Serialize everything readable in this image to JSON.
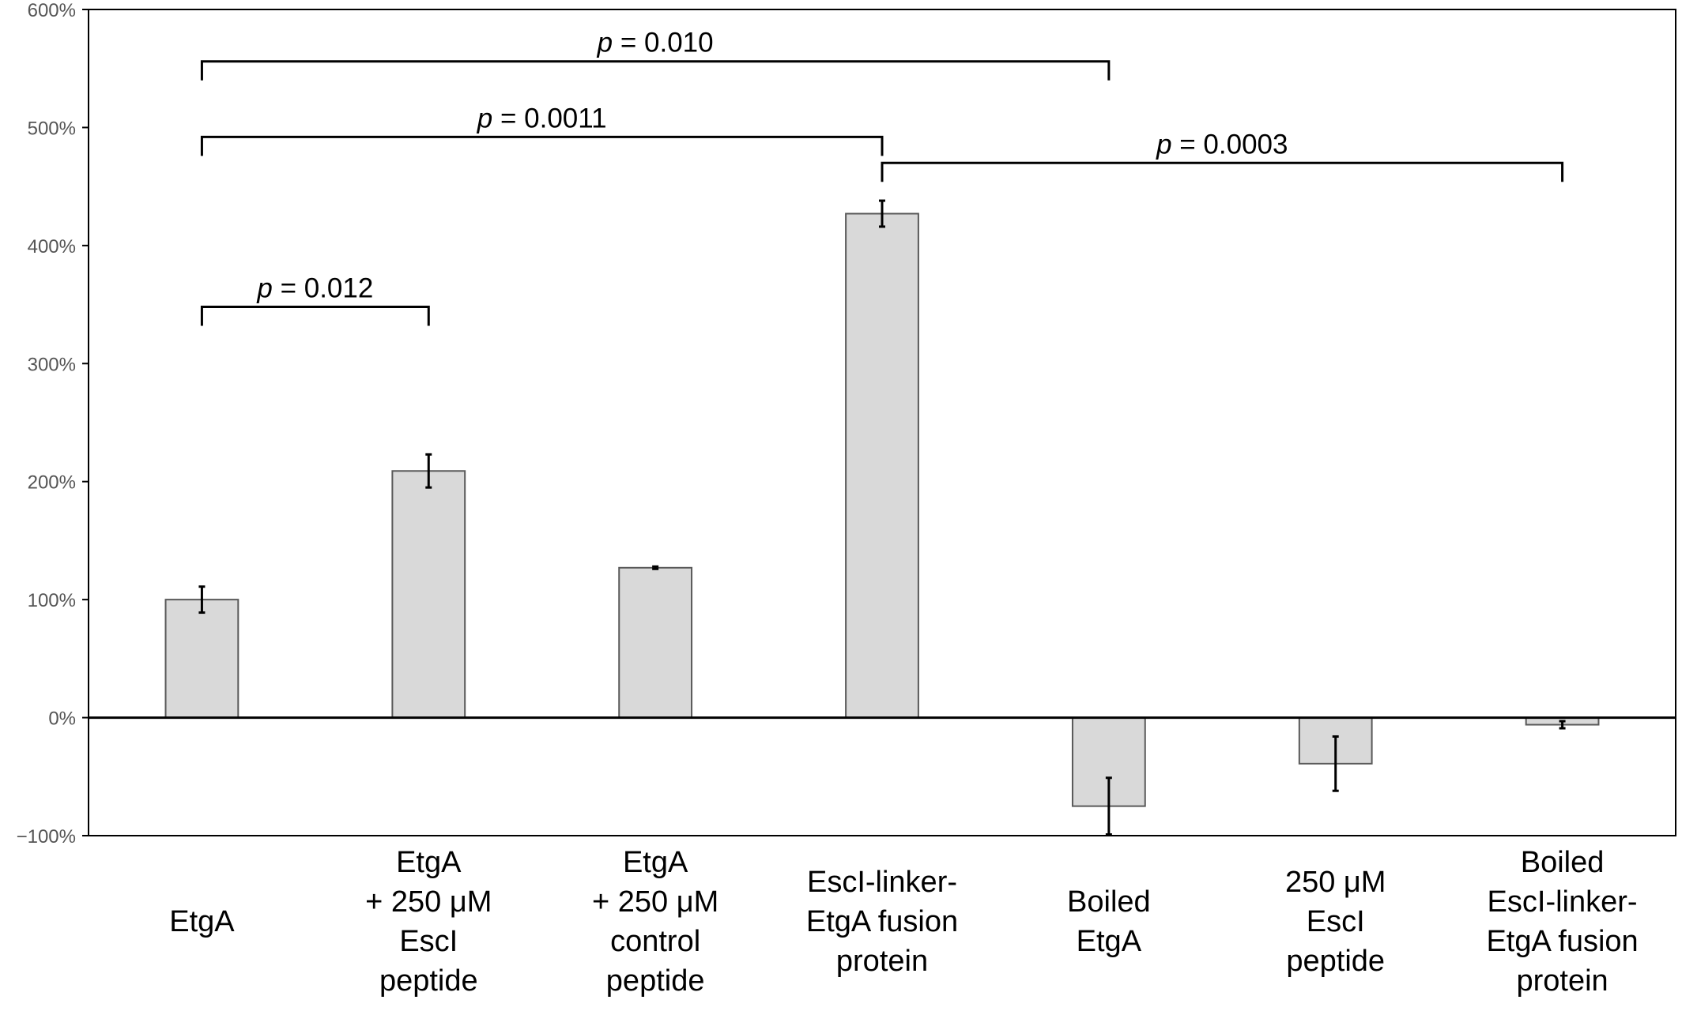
{
  "chart_data": {
    "type": "bar",
    "title": "",
    "xlabel": "",
    "ylabel": "",
    "ylim": [
      -100,
      600
    ],
    "yticks": [
      -100,
      0,
      100,
      200,
      300,
      400,
      500,
      600
    ],
    "ytick_labels": [
      "−100%",
      "0%",
      "100%",
      "200%",
      "300%",
      "400%",
      "500%",
      "600%"
    ],
    "categories": [
      [
        "EtgA"
      ],
      [
        "EtgA",
        "+ 250 μM",
        "EscI",
        "peptide"
      ],
      [
        "EtgA",
        "+ 250 μM",
        "control",
        "peptide"
      ],
      [
        "EscI-linker-",
        "EtgA fusion",
        "protein"
      ],
      [
        "Boiled",
        "EtgA"
      ],
      [
        "250 μM",
        "EscI",
        "peptide"
      ],
      [
        "Boiled",
        "EscI-linker-",
        "EtgA fusion",
        "protein"
      ]
    ],
    "values": [
      100,
      209,
      127,
      427,
      -75,
      -39,
      -6
    ],
    "errors": [
      11,
      14,
      1,
      11,
      24,
      23,
      3
    ],
    "grid": false,
    "bar_color": "#d9d9d9",
    "bar_edge_color": "#595959",
    "annotations": [
      {
        "from": 0,
        "to": 4,
        "y": 556,
        "p_symbol": "p",
        "text": " = 0.010"
      },
      {
        "from": 0,
        "to": 3,
        "y": 492,
        "p_symbol": "p",
        "text": " = 0.0011"
      },
      {
        "from": 3,
        "to": 6,
        "y": 470,
        "p_symbol": "p",
        "text": " = 0.0003"
      },
      {
        "from": 0,
        "to": 1,
        "y": 348,
        "p_symbol": "p",
        "text": " = 0.012"
      }
    ]
  }
}
